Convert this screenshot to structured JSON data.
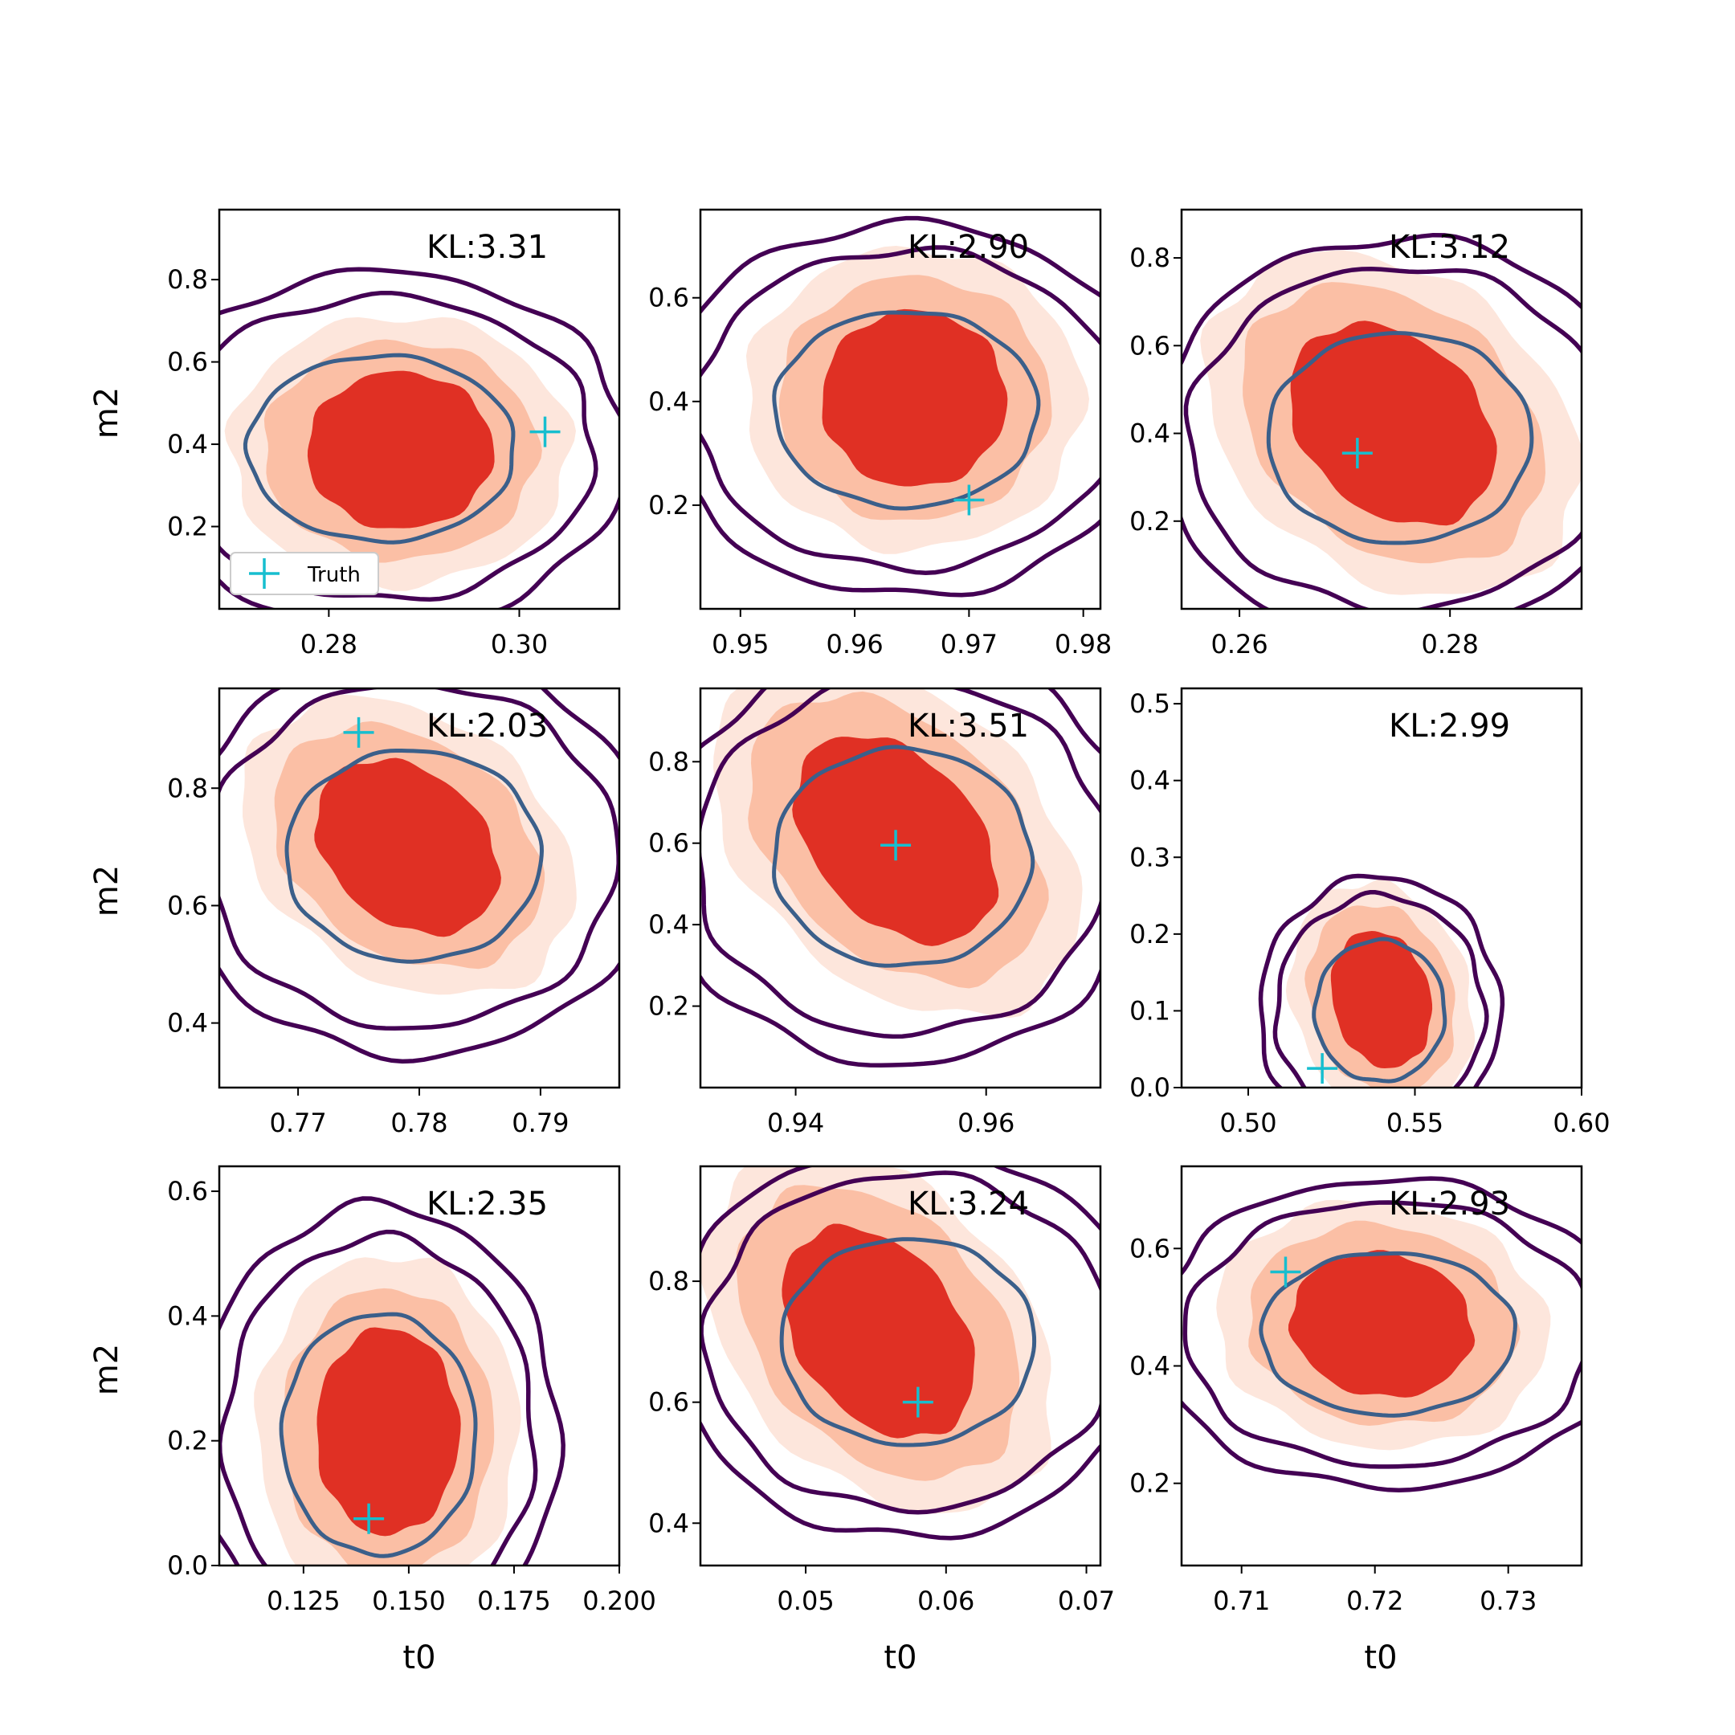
{
  "colors": {
    "fill_outer": "#fde6dc",
    "fill_mid": "#fbbfa5",
    "fill_inner": "#e03024",
    "contour_outer": "#440154",
    "contour_inner": "#3b5f8a",
    "truth": "#17becf"
  },
  "labels": {
    "xlabel": "t0",
    "ylabel": "m2"
  },
  "legend": {
    "label": "Truth",
    "placement": "lower-left"
  },
  "chart_data": [
    {
      "type": "contour",
      "kl": "KL:3.31",
      "xlim": [
        0.2685,
        0.3105
      ],
      "ylim": [
        0.0,
        0.97
      ],
      "xticks": [
        {
          "v": 0.28,
          "t": "0.28"
        },
        {
          "v": 0.3,
          "t": "0.30"
        }
      ],
      "yticks": [
        {
          "v": 0.2,
          "t": "0.2"
        },
        {
          "v": 0.4,
          "t": "0.4"
        },
        {
          "v": 0.6,
          "t": "0.6"
        },
        {
          "v": 0.8,
          "t": "0.8"
        }
      ],
      "fill_center": [
        0.2875,
        0.385
      ],
      "fill_spread": [
        0.0115,
        0.225
      ],
      "fill_tilt": 0.0,
      "ring_center": [
        0.2855,
        0.39
      ],
      "ring_spread": [
        0.014,
        0.245
      ],
      "truth": [
        0.3027,
        0.43
      ],
      "legend": true
    },
    {
      "type": "contour",
      "kl": "KL:2.90",
      "xlim": [
        0.9465,
        0.9815
      ],
      "ylim": [
        0.0,
        0.77
      ],
      "xticks": [
        {
          "v": 0.95,
          "t": "0.95"
        },
        {
          "v": 0.96,
          "t": "0.96"
        },
        {
          "v": 0.97,
          "t": "0.97"
        },
        {
          "v": 0.98,
          "t": "0.98"
        }
      ],
      "yticks": [
        {
          "v": 0.2,
          "t": "0.2"
        },
        {
          "v": 0.4,
          "t": "0.4"
        },
        {
          "v": 0.6,
          "t": "0.6"
        }
      ],
      "fill_center": [
        0.9652,
        0.405
      ],
      "fill_spread": [
        0.0095,
        0.2
      ],
      "fill_tilt": 0.0,
      "ring_center": [
        0.9645,
        0.385
      ],
      "ring_spread": [
        0.0115,
        0.205
      ],
      "truth": [
        0.97,
        0.21
      ],
      "legend": false
    },
    {
      "type": "contour",
      "kl": "KL:3.12",
      "xlim": [
        0.2545,
        0.2925
      ],
      "ylim": [
        0.0,
        0.91
      ],
      "xticks": [
        {
          "v": 0.26,
          "t": "0.26"
        },
        {
          "v": 0.28,
          "t": "0.28"
        }
      ],
      "yticks": [
        {
          "v": 0.2,
          "t": "0.2"
        },
        {
          "v": 0.4,
          "t": "0.4"
        },
        {
          "v": 0.6,
          "t": "0.6"
        },
        {
          "v": 0.8,
          "t": "0.8"
        }
      ],
      "fill_center": [
        0.2745,
        0.42
      ],
      "fill_spread": [
        0.011,
        0.27
      ],
      "fill_tilt": -0.55,
      "ring_center": [
        0.2752,
        0.39
      ],
      "ring_spread": [
        0.0125,
        0.26
      ],
      "truth": [
        0.2712,
        0.355
      ],
      "legend": false
    },
    {
      "type": "contour",
      "kl": "KL:2.03",
      "xlim": [
        0.7635,
        0.7965
      ],
      "ylim": [
        0.29,
        0.97
      ],
      "xticks": [
        {
          "v": 0.77,
          "t": "0.77"
        },
        {
          "v": 0.78,
          "t": "0.78"
        },
        {
          "v": 0.79,
          "t": "0.79"
        }
      ],
      "yticks": [
        {
          "v": 0.4,
          "t": "0.4"
        },
        {
          "v": 0.6,
          "t": "0.6"
        },
        {
          "v": 0.8,
          "t": "0.8"
        }
      ],
      "fill_center": [
        0.779,
        0.7
      ],
      "fill_spread": [
        0.0085,
        0.175
      ],
      "fill_tilt": -0.55,
      "ring_center": [
        0.7795,
        0.685
      ],
      "ring_spread": [
        0.0105,
        0.195
      ],
      "truth": [
        0.775,
        0.895
      ],
      "legend": false
    },
    {
      "type": "contour",
      "kl": "KL:3.51",
      "xlim": [
        0.93,
        0.972
      ],
      "ylim": [
        0.0,
        0.98
      ],
      "xticks": [
        {
          "v": 0.94,
          "t": "0.94"
        },
        {
          "v": 0.96,
          "t": "0.96"
        }
      ],
      "yticks": [
        {
          "v": 0.2,
          "t": "0.2"
        },
        {
          "v": 0.4,
          "t": "0.4"
        },
        {
          "v": 0.6,
          "t": "0.6"
        },
        {
          "v": 0.8,
          "t": "0.8"
        }
      ],
      "fill_center": [
        0.9505,
        0.61
      ],
      "fill_spread": [
        0.0115,
        0.3
      ],
      "fill_tilt": -0.75,
      "ring_center": [
        0.9512,
        0.565
      ],
      "ring_spread": [
        0.0135,
        0.29
      ],
      "truth": [
        0.9505,
        0.595
      ],
      "legend": false
    },
    {
      "type": "contour",
      "kl": "KL:2.99",
      "xlim": [
        0.48,
        0.6
      ],
      "ylim": [
        0.0,
        0.52
      ],
      "xticks": [
        {
          "v": 0.5,
          "t": "0.50"
        },
        {
          "v": 0.55,
          "t": "0.55"
        },
        {
          "v": 0.6,
          "t": "0.60"
        }
      ],
      "yticks": [
        {
          "v": 0.0,
          "t": "0.0"
        },
        {
          "v": 0.1,
          "t": "0.1"
        },
        {
          "v": 0.2,
          "t": "0.2"
        },
        {
          "v": 0.3,
          "t": "0.3"
        },
        {
          "v": 0.4,
          "t": "0.4"
        },
        {
          "v": 0.5,
          "t": "0.5"
        }
      ],
      "fill_center": [
        0.54,
        0.115
      ],
      "fill_spread": [
        0.0175,
        0.105
      ],
      "fill_tilt": -0.3,
      "ring_center": [
        0.5395,
        0.1
      ],
      "ring_spread": [
        0.0195,
        0.1
      ],
      "truth": [
        0.5222,
        0.025
      ],
      "legend": false
    },
    {
      "type": "contour",
      "kl": "KL:2.35",
      "xlim": [
        0.105,
        0.2
      ],
      "ylim": [
        0.0,
        0.64
      ],
      "xticks": [
        {
          "v": 0.125,
          "t": "0.125"
        },
        {
          "v": 0.15,
          "t": "0.150"
        },
        {
          "v": 0.175,
          "t": "0.175"
        },
        {
          "v": 0.2,
          "t": "0.200"
        }
      ],
      "yticks": [
        {
          "v": 0.0,
          "t": "0.0"
        },
        {
          "v": 0.2,
          "t": "0.2"
        },
        {
          "v": 0.4,
          "t": "0.4"
        },
        {
          "v": 0.6,
          "t": "0.6"
        }
      ],
      "fill_center": [
        0.145,
        0.215
      ],
      "fill_spread": [
        0.02,
        0.195
      ],
      "fill_tilt": 0.0,
      "ring_center": [
        0.143,
        0.21
      ],
      "ring_spread": [
        0.023,
        0.21
      ],
      "truth": [
        0.1405,
        0.075
      ],
      "legend": false
    },
    {
      "type": "contour",
      "kl": "KL:3.24",
      "xlim": [
        0.0425,
        0.071
      ],
      "ylim": [
        0.33,
        0.99
      ],
      "xticks": [
        {
          "v": 0.05,
          "t": "0.05"
        },
        {
          "v": 0.06,
          "t": "0.06"
        },
        {
          "v": 0.07,
          "t": "0.07"
        }
      ],
      "yticks": [
        {
          "v": 0.4,
          "t": "0.4"
        },
        {
          "v": 0.6,
          "t": "0.6"
        },
        {
          "v": 0.8,
          "t": "0.8"
        }
      ],
      "fill_center": [
        0.0552,
        0.715
      ],
      "fill_spread": [
        0.0075,
        0.205
      ],
      "fill_tilt": -0.7,
      "ring_center": [
        0.0573,
        0.7
      ],
      "ring_spread": [
        0.009,
        0.185
      ],
      "truth": [
        0.058,
        0.6
      ],
      "legend": false
    },
    {
      "type": "contour",
      "kl": "KL:2.93",
      "xlim": [
        0.7055,
        0.7355
      ],
      "ylim": [
        0.06,
        0.74
      ],
      "xticks": [
        {
          "v": 0.71,
          "t": "0.71"
        },
        {
          "v": 0.72,
          "t": "0.72"
        },
        {
          "v": 0.73,
          "t": "0.73"
        }
      ],
      "yticks": [
        {
          "v": 0.2,
          "t": "0.2"
        },
        {
          "v": 0.4,
          "t": "0.4"
        },
        {
          "v": 0.6,
          "t": "0.6"
        }
      ],
      "fill_center": [
        0.7205,
        0.47
      ],
      "fill_spread": [
        0.008,
        0.145
      ],
      "fill_tilt": -0.15,
      "ring_center": [
        0.721,
        0.455
      ],
      "ring_spread": [
        0.0095,
        0.15
      ],
      "truth": [
        0.7133,
        0.56
      ],
      "legend": false
    }
  ]
}
